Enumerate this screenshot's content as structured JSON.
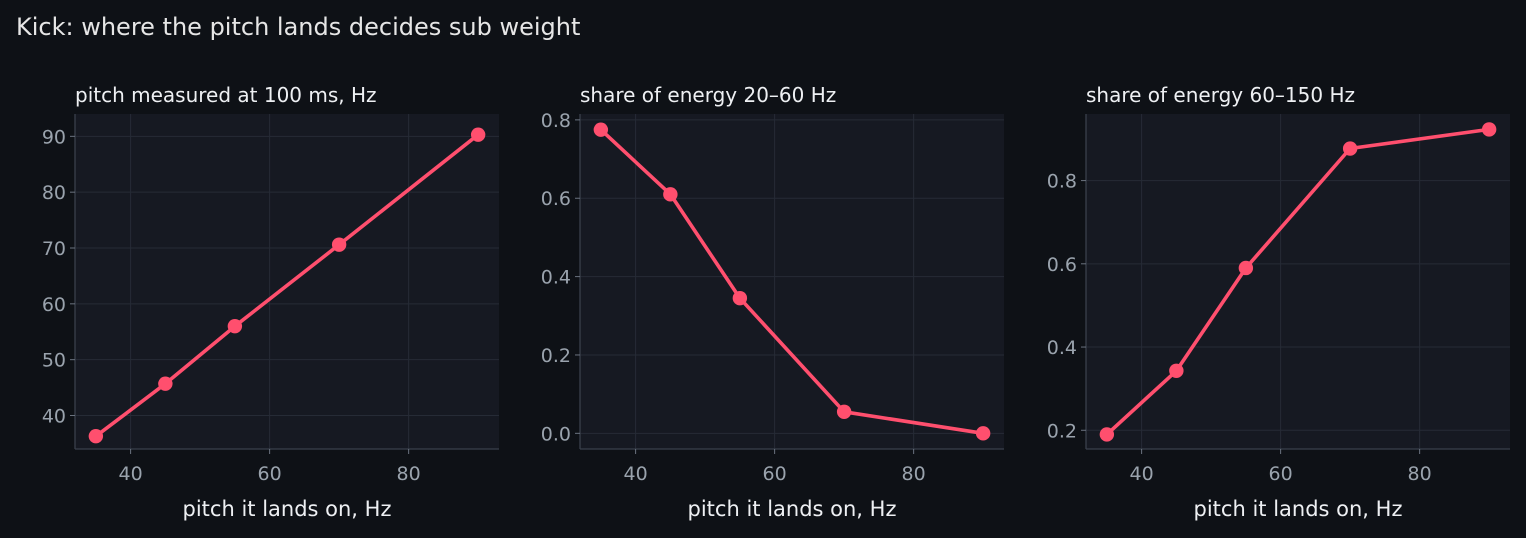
{
  "figure": {
    "title": "Kick: where the pitch lands decides sub weight"
  },
  "colors": {
    "background": "#0e1116",
    "panel": "#161922",
    "grid": "#262b36",
    "line": "#ff4f6e",
    "tick_text": "#9aa3ad",
    "label_text": "#eef0f3"
  },
  "chart_data": [
    {
      "type": "line",
      "title": "pitch measured at 100 ms, Hz",
      "xlabel": "pitch it lands on, Hz",
      "ylabel": "",
      "x": [
        35,
        45,
        55,
        70,
        90
      ],
      "y": [
        36.3,
        45.7,
        56,
        70.6,
        90.3
      ],
      "xlim": [
        32,
        93
      ],
      "ylim": [
        34,
        94
      ],
      "xticks": [
        40,
        60,
        80
      ],
      "yticks": [
        40,
        50,
        60,
        70,
        80,
        90
      ],
      "grid": true
    },
    {
      "type": "line",
      "title": "share of energy 20–60 Hz",
      "xlabel": "pitch it lands on, Hz",
      "ylabel": "",
      "x": [
        35,
        45,
        55,
        70,
        90
      ],
      "y": [
        0.775,
        0.61,
        0.345,
        0.055,
        0.0
      ],
      "xlim": [
        32,
        93
      ],
      "ylim": [
        -0.04,
        0.815
      ],
      "xticks": [
        40,
        60,
        80
      ],
      "yticks": [
        0.0,
        0.2,
        0.4,
        0.6,
        0.8
      ],
      "grid": true
    },
    {
      "type": "line",
      "title": "share of energy 60–150 Hz",
      "xlabel": "pitch it lands on, Hz",
      "ylabel": "",
      "x": [
        35,
        45,
        55,
        70,
        90
      ],
      "y": [
        0.19,
        0.343,
        0.59,
        0.877,
        0.923
      ],
      "xlim": [
        32,
        93
      ],
      "ylim": [
        0.155,
        0.96
      ],
      "xticks": [
        40,
        60,
        80
      ],
      "yticks": [
        0.2,
        0.4,
        0.6,
        0.8
      ],
      "grid": true
    }
  ]
}
